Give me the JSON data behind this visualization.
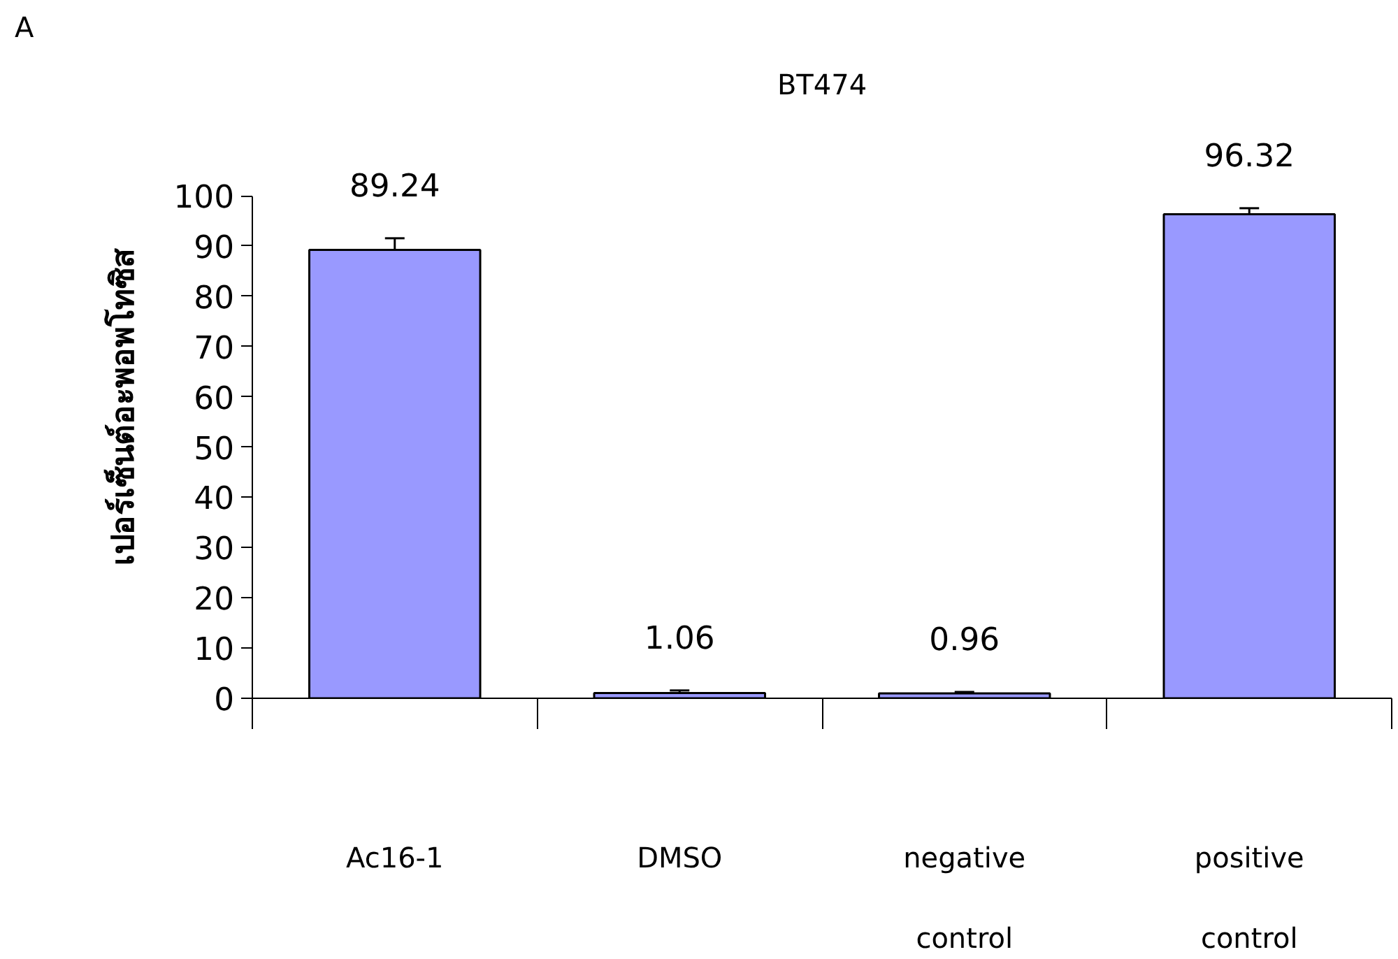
{
  "chart_data": {
    "type": "bar",
    "title": "BT474",
    "ylabel": "เปอร์เซ็นต์อะพอพโทซิส",
    "annotations": [
      "A"
    ],
    "categories": [
      "Ac16-1",
      "DMSO",
      "negative control",
      "positive control"
    ],
    "values": [
      89.24,
      1.06,
      0.96,
      96.32
    ],
    "errors": [
      2.3,
      0.5,
      0.3,
      1.2
    ],
    "color": "#9999ff",
    "ylim": [
      0,
      100
    ],
    "yticks": [
      0,
      10,
      20,
      30,
      40,
      50,
      60,
      70,
      80,
      90,
      100
    ],
    "data_labels": true,
    "grid": false,
    "legend": false
  }
}
